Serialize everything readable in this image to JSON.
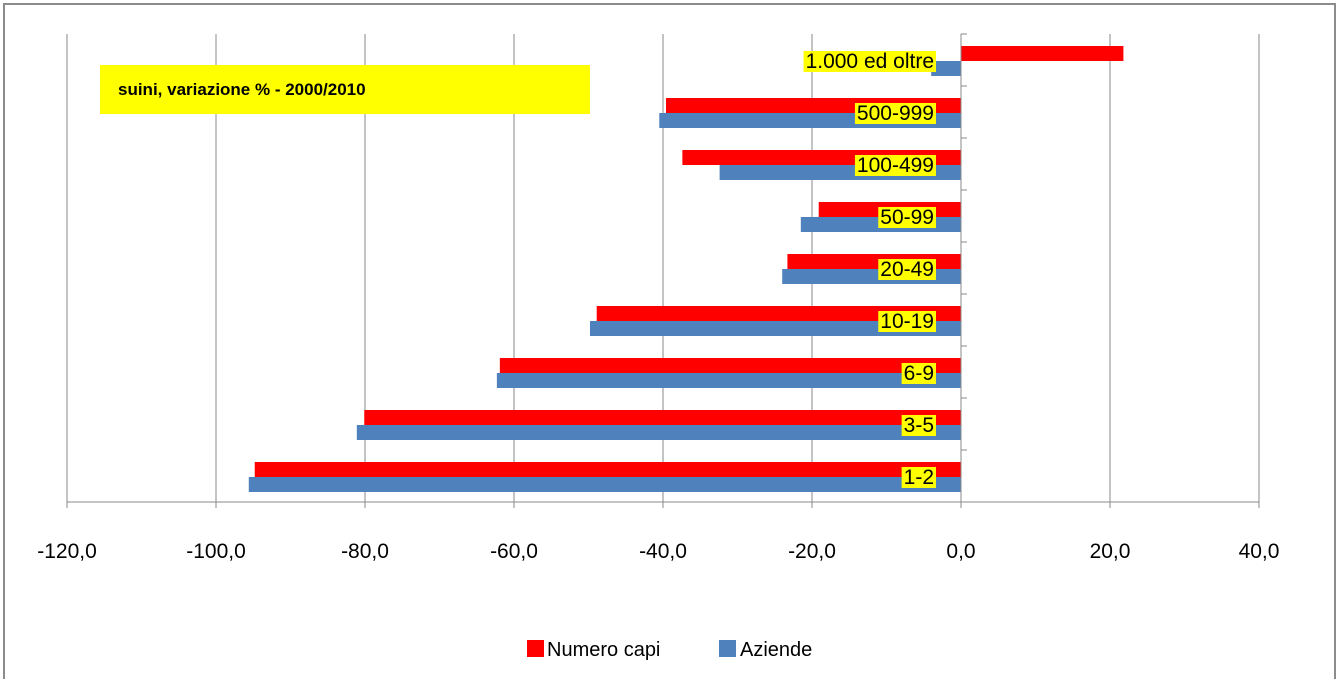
{
  "chart_data": {
    "type": "bar",
    "orientation": "horizontal",
    "title": "suini, variazione % - 2000/2010",
    "categories": [
      "1-2",
      "3-5",
      "6-9",
      "10-19",
      "20-49",
      "50-99",
      "100-499",
      "500-999",
      "1.000 ed oltre"
    ],
    "series": [
      {
        "name": "Numero capi",
        "color": "#ff0000",
        "values": [
          -94.8,
          -80.1,
          -61.9,
          -48.9,
          -23.3,
          -19.1,
          -37.4,
          -39.6,
          21.8
        ]
      },
      {
        "name": "Aziende",
        "color": "#4f81bd",
        "values": [
          -95.6,
          -81.1,
          -62.3,
          -49.8,
          -24.0,
          -21.5,
          -32.4,
          -40.5,
          -4.0
        ]
      }
    ],
    "xlim": [
      -120,
      40
    ],
    "xticks": [
      "-120,0",
      "-100,0",
      "-80,0",
      "-60,0",
      "-40,0",
      "-20,0",
      "0,0",
      "20,0",
      "40,0"
    ],
    "xtick_values": [
      -120,
      -100,
      -80,
      -60,
      -40,
      -20,
      0,
      20,
      40
    ],
    "grid": true,
    "legend_position": "bottom",
    "label_highlight_color": "#ffff00"
  }
}
